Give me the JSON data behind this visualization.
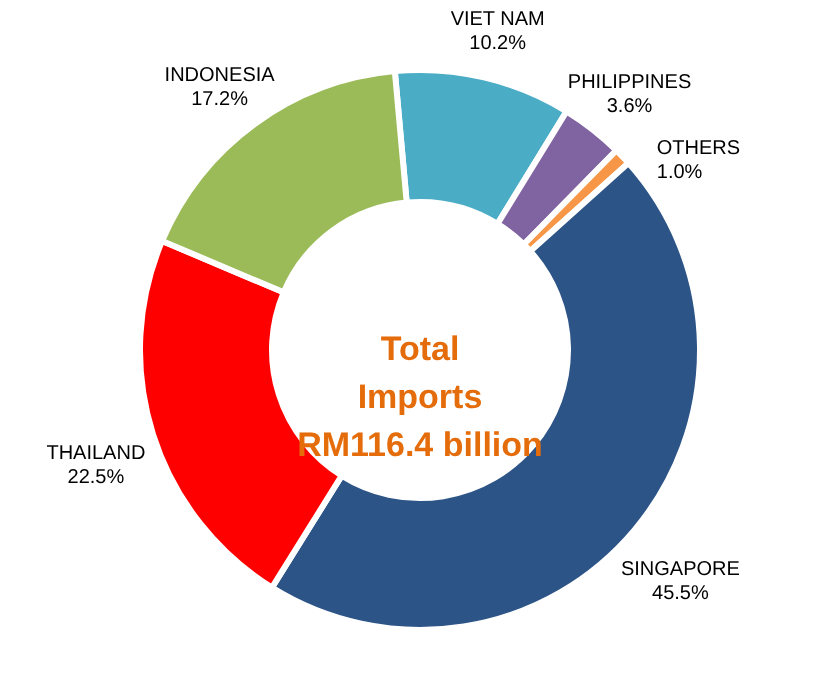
{
  "chart_data": {
    "type": "donut",
    "title": "Total Imports RM116.4 billion",
    "categories": [
      "VIET NAM",
      "PHILIPPINES",
      "OTHERS",
      "SINGAPORE",
      "THAILAND",
      "INDONESIA"
    ],
    "values": [
      10.2,
      3.6,
      1.0,
      45.5,
      22.5,
      17.2
    ],
    "colors": [
      "#4bacc6",
      "#8064a2",
      "#f79646",
      "#2c5487",
      "#ff0000",
      "#9bbb59"
    ],
    "value_labels": [
      "10.2%",
      "3.6%",
      "1.0%",
      "45.5%",
      "22.5%",
      "17.2%"
    ]
  }
}
